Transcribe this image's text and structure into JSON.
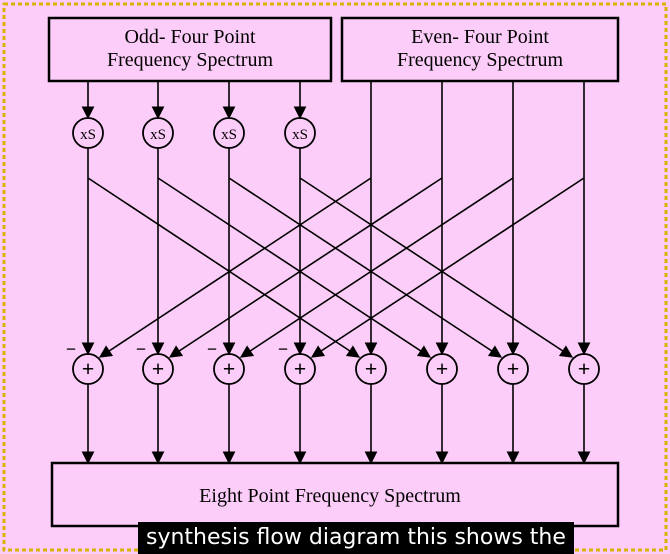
{
  "diagram": {
    "colors": {
      "background": "#fccdf8",
      "border_dash": "#d8b400",
      "frame_dark": "#0d0d0d",
      "stroke": "#000000"
    },
    "odd_box_lines": [
      "Odd-  Four Point",
      "Frequency Spectrum"
    ],
    "even_box_lines": [
      "Even-  Four Point",
      "Frequency Spectrum"
    ],
    "multiplier_label": "xS",
    "adder_label": "+",
    "minus_sign": "−",
    "output_box_label": "Eight Point Frequency Spectrum"
  },
  "caption": {
    "text": "synthesis flow diagram this shows the"
  }
}
